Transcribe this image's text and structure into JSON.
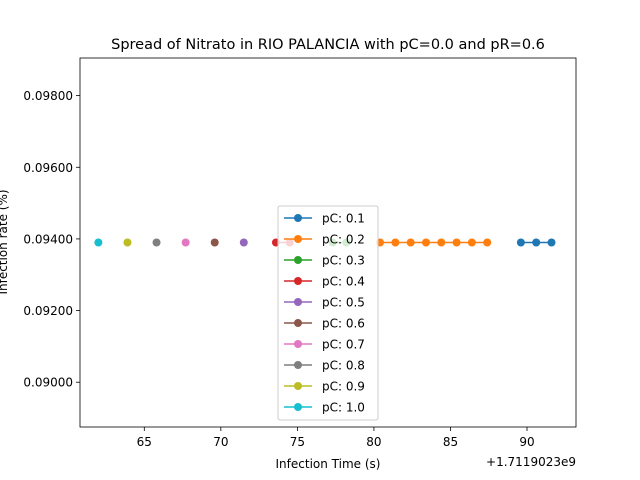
{
  "chart_data": {
    "type": "line",
    "title": "Spread of Nitrato in RIO PALANCIA with pC=0.0 and pR=0.6",
    "xlabel": "Infection Time (s)",
    "ylabel": "Infection rate (%)",
    "x_offset_label": "+1.7119023e9",
    "xlim": [
      60.8,
      93.2
    ],
    "ylim": [
      0.08875,
      0.09905
    ],
    "x_ticks": [
      65,
      70,
      75,
      80,
      85,
      90
    ],
    "y_ticks": [
      0.09,
      0.092,
      0.094,
      0.096,
      0.098
    ],
    "x_tick_labels": [
      "65",
      "70",
      "75",
      "80",
      "85",
      "90"
    ],
    "y_tick_labels": [
      "0.09000",
      "0.09200",
      "0.09400",
      "0.09600",
      "0.09800"
    ],
    "grid": false,
    "legend_position": "lower center",
    "series": [
      {
        "name": "pC: 0.1",
        "color": "#1f77b4",
        "x": [
          89.6,
          90.6,
          91.6
        ],
        "y": [
          0.0939,
          0.0939,
          0.0939
        ]
      },
      {
        "name": "pC: 0.2",
        "color": "#ff7f0e",
        "x": [
          80.4,
          81.4,
          82.4,
          83.4,
          84.4,
          85.4,
          86.4,
          87.4
        ],
        "y": [
          0.0939,
          0.0939,
          0.0939,
          0.0939,
          0.0939,
          0.0939,
          0.0939,
          0.0939
        ]
      },
      {
        "name": "pC: 0.3",
        "color": "#2ca02c",
        "x": [
          77.3,
          78.2
        ],
        "y": [
          0.0939,
          0.0939
        ]
      },
      {
        "name": "pC: 0.4",
        "color": "#d62728",
        "x": [
          73.6,
          74.5
        ],
        "y": [
          0.0939,
          0.0939
        ]
      },
      {
        "name": "pC: 0.5",
        "color": "#9467bd",
        "x": [
          71.5
        ],
        "y": [
          0.0939
        ]
      },
      {
        "name": "pC: 0.6",
        "color": "#8c564b",
        "x": [
          69.6
        ],
        "y": [
          0.0939
        ]
      },
      {
        "name": "pC: 0.7",
        "color": "#e377c2",
        "x": [
          67.7
        ],
        "y": [
          0.0939
        ]
      },
      {
        "name": "pC: 0.8",
        "color": "#7f7f7f",
        "x": [
          65.8
        ],
        "y": [
          0.0939
        ]
      },
      {
        "name": "pC: 0.9",
        "color": "#bcbd22",
        "x": [
          63.9
        ],
        "y": [
          0.0939
        ]
      },
      {
        "name": "pC: 1.0",
        "color": "#17becf",
        "x": [
          62.0
        ],
        "y": [
          0.0939
        ]
      }
    ]
  }
}
